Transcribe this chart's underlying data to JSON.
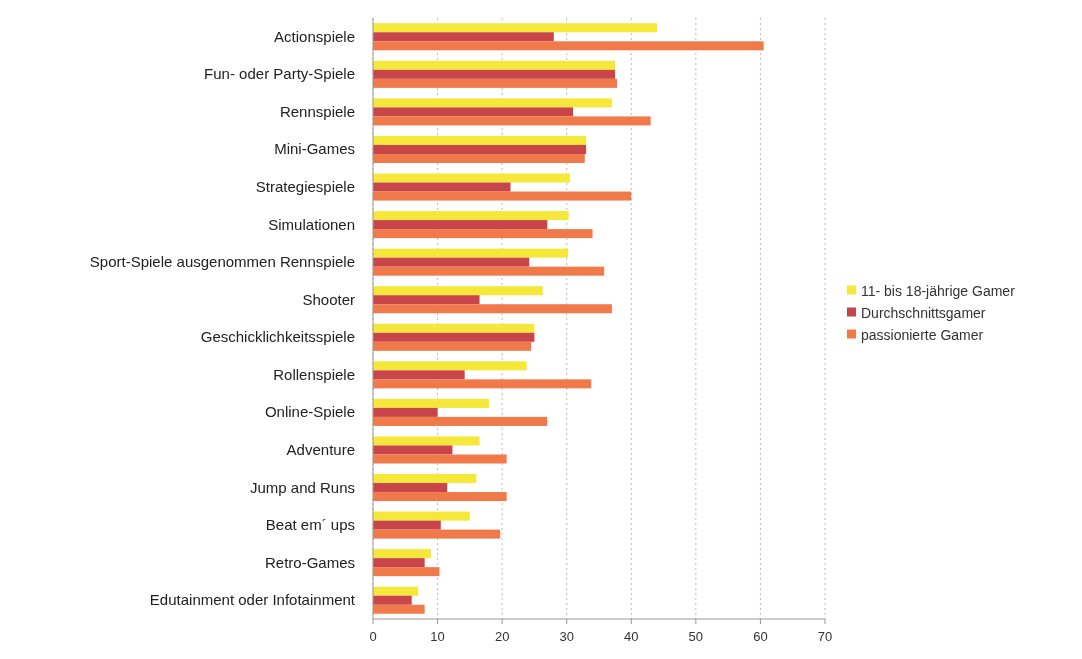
{
  "chart_data": {
    "type": "bar",
    "orientation": "horizontal",
    "categories": [
      "Actionspiele",
      "Fun- oder Party-Spiele",
      "Rennspiele",
      "Mini-Games",
      "Strategiespiele",
      "Simulationen",
      "Sport-Spiele ausgenommen Rennspiele",
      "Shooter",
      "Geschicklichkeitsspiele",
      "Rollenspiele",
      "Online-Spiele",
      "Adventure",
      "Jump and Runs",
      "Beat em´ ups",
      "Retro-Games",
      "Edutainment oder Infotainment"
    ],
    "series": [
      {
        "name": "11- bis 18-jährige Gamer",
        "color": "#f5e83a",
        "values": [
          44,
          37.5,
          37,
          33,
          30.5,
          30.3,
          30.2,
          26.3,
          25,
          23.8,
          18,
          16.5,
          16,
          15,
          9,
          7
        ]
      },
      {
        "name": "Durchschnittsgamer",
        "color": "#c8464a",
        "values": [
          28,
          37.5,
          31,
          33,
          21.3,
          27,
          24.2,
          16.5,
          25,
          14.2,
          10,
          12.3,
          11.5,
          10.5,
          8,
          6
        ]
      },
      {
        "name": "passionierte Gamer",
        "color": "#f07a4a",
        "values": [
          60.5,
          37.8,
          43,
          32.8,
          40,
          34,
          35.8,
          37,
          24.5,
          33.8,
          27,
          20.7,
          20.7,
          19.7,
          10.3,
          8
        ]
      }
    ],
    "xlim": [
      0,
      70
    ],
    "xticks": [
      0,
      10,
      20,
      30,
      40,
      50,
      60,
      70
    ],
    "grid": "x",
    "legend": "right"
  }
}
